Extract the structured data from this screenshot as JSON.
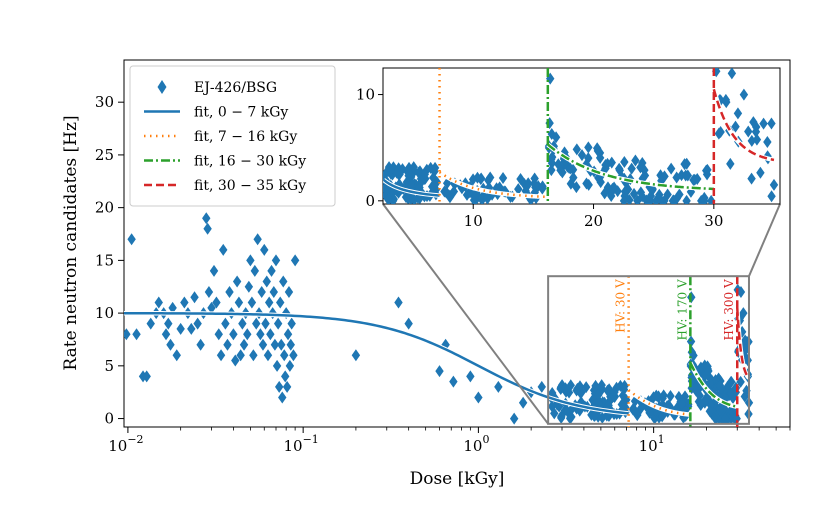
{
  "chart_data": {
    "type": "scatter",
    "xscale": "log",
    "xlabel": "Dose [kGy]",
    "ylabel": "Rate neutron candidates [Hz]",
    "xlim": [
      0.0095,
      60
    ],
    "ylim": [
      -0.8,
      34
    ],
    "x_ticks": [
      {
        "value": 0.01,
        "label": "10",
        "exp": "−2"
      },
      {
        "value": 0.1,
        "label": "10",
        "exp": "−1"
      },
      {
        "value": 1,
        "label": "10",
        "exp": "0"
      },
      {
        "value": 10,
        "label": "10",
        "exp": "1"
      }
    ],
    "y_ticks": [
      0,
      5,
      10,
      15,
      20,
      25,
      30
    ],
    "legend": {
      "position": "top-left",
      "entries": [
        {
          "label": "EJ-426/BSG",
          "style": "marker",
          "color": "#1f77b4"
        },
        {
          "label": "fit, 0 − 7 kGy",
          "style": "solid",
          "color": "#1f77b4"
        },
        {
          "label": "fit, 7 − 16 kGy",
          "style": "dotted",
          "color": "#ff7f0e"
        },
        {
          "label": "fit, 16 − 30 kGy",
          "style": "dashdot",
          "color": "#2ca02c"
        },
        {
          "label": "fit, 30 − 35 kGy",
          "style": "dashed",
          "color": "#d62728"
        }
      ]
    },
    "voltage_markers": [
      {
        "x": 7.2,
        "label": "HV: 30 V",
        "color": "#ff7f0e",
        "style": "dotted"
      },
      {
        "x": 16.2,
        "label": "HV: 170 V",
        "color": "#2ca02c",
        "style": "dashdot"
      },
      {
        "x": 30.0,
        "label": "HV: 300 V",
        "color": "#d62728",
        "style": "dashed"
      }
    ],
    "zoom_region": {
      "x": [
        2.5,
        35
      ],
      "y": [
        -0.5,
        13.5
      ]
    },
    "inset": {
      "xscale": "linear",
      "xlim": [
        2.5,
        35.5
      ],
      "ylim": [
        -0.3,
        12.5
      ],
      "x_ticks": [
        10,
        20,
        30
      ],
      "y_ticks": [
        0,
        10
      ]
    },
    "fits": [
      {
        "name": "fit, 0 − 7 kGy",
        "range": [
          0.0095,
          7.2
        ],
        "model": "plateau",
        "A": 10.0,
        "x0": 1.0,
        "n": 1.5,
        "color": "#1f77b4",
        "style": "solid"
      },
      {
        "name": "fit, 7 − 16 kGy",
        "range": [
          7.2,
          16.2
        ],
        "model": "decay",
        "start": 2.7,
        "end": 0.25,
        "color": "#ff7f0e",
        "style": "dotted"
      },
      {
        "name": "fit, 16 − 30 kGy",
        "range": [
          16.2,
          30.0
        ],
        "model": "decay",
        "start": 5.3,
        "end": 0.9,
        "color": "#2ca02c",
        "style": "dashdot"
      },
      {
        "name": "fit, 30 − 35 kGy",
        "range": [
          30.0,
          35.0
        ],
        "model": "decay",
        "start": 10.5,
        "end": 3.5,
        "color": "#d62728",
        "style": "dashed"
      }
    ],
    "series": [
      {
        "name": "EJ-426/BSG",
        "marker": "diamond",
        "color": "#1f77b4",
        "points": [
          [
            0.0098,
            8
          ],
          [
            0.0105,
            17
          ],
          [
            0.0112,
            8
          ],
          [
            0.0122,
            4
          ],
          [
            0.0128,
            4
          ],
          [
            0.0135,
            9
          ],
          [
            0.0145,
            10
          ],
          [
            0.015,
            11
          ],
          [
            0.016,
            10
          ],
          [
            0.0165,
            8
          ],
          [
            0.017,
            9
          ],
          [
            0.0175,
            7
          ],
          [
            0.018,
            10.5
          ],
          [
            0.019,
            6
          ],
          [
            0.02,
            8.5
          ],
          [
            0.021,
            11
          ],
          [
            0.022,
            10
          ],
          [
            0.023,
            8.5
          ],
          [
            0.024,
            11.5
          ],
          [
            0.025,
            9
          ],
          [
            0.026,
            7
          ],
          [
            0.027,
            10
          ],
          [
            0.028,
            19
          ],
          [
            0.0285,
            18
          ],
          [
            0.029,
            12
          ],
          [
            0.03,
            10.5
          ],
          [
            0.031,
            14
          ],
          [
            0.032,
            11
          ],
          [
            0.033,
            8
          ],
          [
            0.034,
            6
          ],
          [
            0.035,
            16
          ],
          [
            0.036,
            9
          ],
          [
            0.037,
            7
          ],
          [
            0.038,
            12
          ],
          [
            0.039,
            10
          ],
          [
            0.04,
            8
          ],
          [
            0.041,
            5.5
          ],
          [
            0.042,
            13
          ],
          [
            0.043,
            11
          ],
          [
            0.044,
            6
          ],
          [
            0.045,
            9
          ],
          [
            0.046,
            7
          ],
          [
            0.047,
            10
          ],
          [
            0.048,
            8
          ],
          [
            0.049,
            12.5
          ],
          [
            0.05,
            15
          ],
          [
            0.051,
            11
          ],
          [
            0.052,
            6
          ],
          [
            0.053,
            14
          ],
          [
            0.054,
            9
          ],
          [
            0.055,
            17
          ],
          [
            0.056,
            10
          ],
          [
            0.057,
            8
          ],
          [
            0.058,
            12
          ],
          [
            0.059,
            7
          ],
          [
            0.06,
            16
          ],
          [
            0.061,
            9
          ],
          [
            0.062,
            13
          ],
          [
            0.063,
            6
          ],
          [
            0.064,
            11
          ],
          [
            0.065,
            8
          ],
          [
            0.066,
            14
          ],
          [
            0.067,
            10
          ],
          [
            0.068,
            12
          ],
          [
            0.069,
            7
          ],
          [
            0.07,
            15
          ],
          [
            0.071,
            5
          ],
          [
            0.072,
            9
          ],
          [
            0.073,
            3
          ],
          [
            0.074,
            11
          ],
          [
            0.075,
            7
          ],
          [
            0.076,
            2
          ],
          [
            0.077,
            13
          ],
          [
            0.078,
            6
          ],
          [
            0.079,
            4
          ],
          [
            0.08,
            10
          ],
          [
            0.081,
            3
          ],
          [
            0.082,
            8
          ],
          [
            0.083,
            12
          ],
          [
            0.084,
            5
          ],
          [
            0.085,
            7
          ],
          [
            0.086,
            9
          ],
          [
            0.088,
            6
          ],
          [
            0.09,
            15
          ],
          [
            0.2,
            6
          ],
          [
            0.35,
            11
          ],
          [
            0.4,
            9
          ],
          [
            0.6,
            4.5
          ],
          [
            0.65,
            7
          ],
          [
            0.72,
            3.5
          ],
          [
            0.9,
            4
          ],
          [
            1.0,
            2
          ],
          [
            1.3,
            3
          ],
          [
            1.6,
            0
          ],
          [
            1.8,
            1.5
          ],
          [
            2.0,
            2.5
          ],
          [
            2.3,
            3
          ],
          [
            2.6,
            2
          ]
        ]
      }
    ]
  }
}
